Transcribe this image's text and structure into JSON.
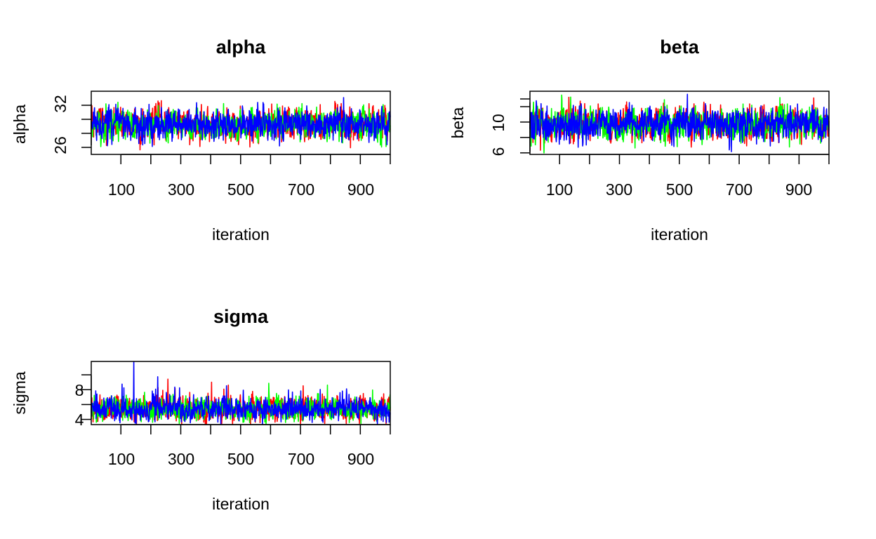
{
  "chart_data": [
    {
      "type": "line",
      "title": "alpha",
      "xlabel": "iteration",
      "ylabel": "alpha",
      "xlim": [
        1,
        1000
      ],
      "ylim": [
        25,
        34
      ],
      "x_ticks": [
        100,
        200,
        300,
        400,
        500,
        600,
        700,
        800,
        900,
        1000
      ],
      "x_tick_labels": [
        "100",
        "300",
        "500",
        "700",
        "900"
      ],
      "y_ticks": [
        26,
        28,
        30,
        32
      ],
      "y_tick_labels": [
        "26",
        "32"
      ],
      "grid": false,
      "series": [
        {
          "color": "#ff0000",
          "mean": 29.3,
          "sd": 1.1
        },
        {
          "color": "#00ff00",
          "mean": 29.3,
          "sd": 1.1
        },
        {
          "color": "#0000ff",
          "mean": 29.3,
          "sd": 1.1
        }
      ]
    },
    {
      "type": "line",
      "title": "beta",
      "xlabel": "iteration",
      "ylabel": "beta",
      "xlim": [
        1,
        1000
      ],
      "ylim": [
        5.8,
        14
      ],
      "x_ticks": [
        100,
        200,
        300,
        400,
        500,
        600,
        700,
        800,
        900,
        1000
      ],
      "x_tick_labels": [
        "100",
        "300",
        "500",
        "700",
        "900"
      ],
      "y_ticks": [
        6,
        8,
        10,
        12,
        13
      ],
      "y_tick_labels": [
        "6",
        "10"
      ],
      "grid": false,
      "series": [
        {
          "color": "#ff0000",
          "mean": 9.8,
          "sd": 1.1
        },
        {
          "color": "#00ff00",
          "mean": 9.8,
          "sd": 1.1
        },
        {
          "color": "#0000ff",
          "mean": 9.8,
          "sd": 1.1
        }
      ]
    },
    {
      "type": "line",
      "title": "sigma",
      "xlabel": "iteration",
      "ylabel": "sigma",
      "xlim": [
        1,
        1000
      ],
      "ylim": [
        3.3,
        11.8
      ],
      "x_ticks": [
        100,
        200,
        300,
        400,
        500,
        600,
        700,
        800,
        900,
        1000
      ],
      "x_tick_labels": [
        "100",
        "300",
        "500",
        "700",
        "900"
      ],
      "y_ticks": [
        4,
        6,
        8,
        10
      ],
      "y_tick_labels": [
        "4",
        "8"
      ],
      "grid": false,
      "series": [
        {
          "color": "#ff0000",
          "mean": 5.4,
          "sd": 0.8
        },
        {
          "color": "#00ff00",
          "mean": 5.4,
          "sd": 0.8
        },
        {
          "color": "#0000ff",
          "mean": 5.4,
          "sd": 0.8
        }
      ]
    }
  ]
}
